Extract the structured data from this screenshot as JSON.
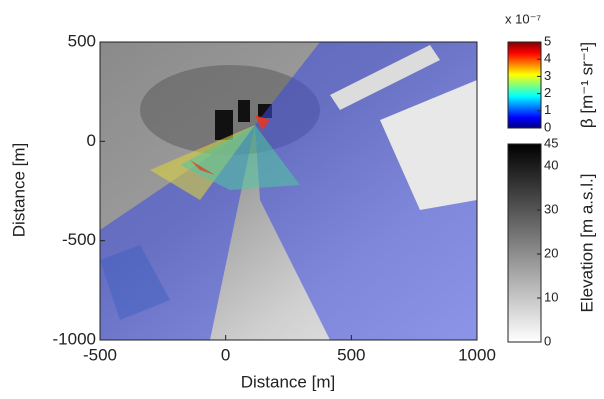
{
  "chart_data": {
    "type": "map",
    "xlabel": "Distance [m]",
    "ylabel": "Distance [m]",
    "xlim": [
      -500,
      1000
    ],
    "ylim": [
      -1000,
      500
    ],
    "xticks": [
      -500,
      0,
      500,
      1000
    ],
    "yticks": [
      -1000,
      -500,
      0,
      500
    ],
    "colorbars": [
      {
        "label": "β [m⁻¹ sr⁻¹]",
        "multiplier": "x 10⁻⁷",
        "lim": [
          0,
          5
        ],
        "ticks": [
          0,
          1,
          2,
          3,
          4,
          5
        ],
        "colormap": "jet"
      },
      {
        "label": "Elevation [m a.s.l.]",
        "lim": [
          0,
          45
        ],
        "ticks": [
          0,
          10,
          20,
          30,
          40,
          45
        ],
        "colormap": "gray"
      }
    ]
  }
}
